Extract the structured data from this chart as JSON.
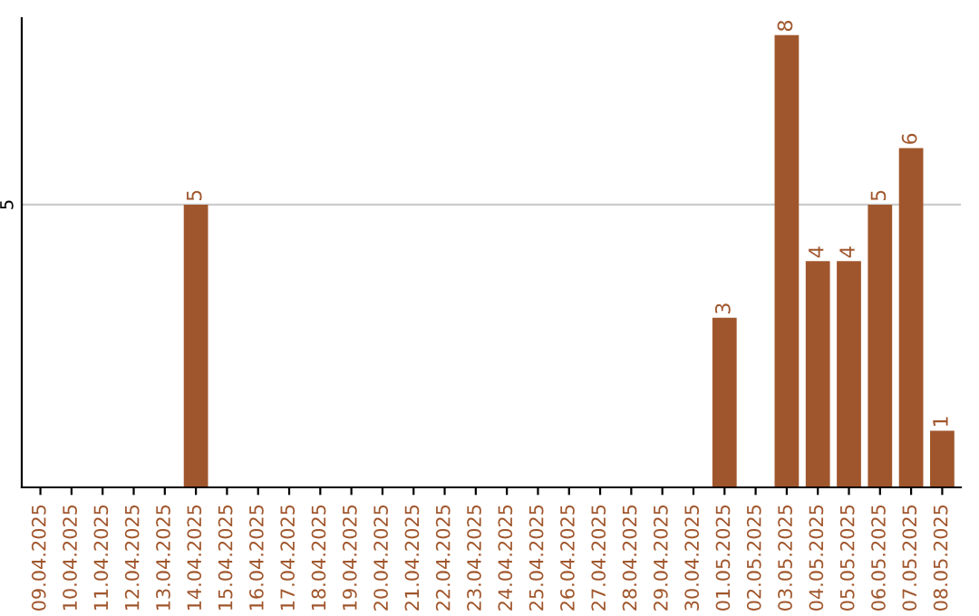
{
  "chart_data": {
    "type": "bar",
    "categories": [
      "09.04.2025",
      "10.04.2025",
      "11.04.2025",
      "12.04.2025",
      "13.04.2025",
      "14.04.2025",
      "15.04.2025",
      "16.04.2025",
      "17.04.2025",
      "18.04.2025",
      "19.04.2025",
      "20.04.2025",
      "21.04.2025",
      "22.04.2025",
      "23.04.2025",
      "24.04.2025",
      "25.04.2025",
      "26.04.2025",
      "27.04.2025",
      "28.04.2025",
      "29.04.2025",
      "30.04.2025",
      "01.05.2025",
      "02.05.2025",
      "03.05.2025",
      "04.05.2025",
      "05.05.2025",
      "06.05.2025",
      "07.05.2025",
      "08.05.2025"
    ],
    "values": [
      0,
      0,
      0,
      0,
      0,
      5,
      0,
      0,
      0,
      0,
      0,
      0,
      0,
      0,
      0,
      0,
      0,
      0,
      0,
      0,
      0,
      0,
      3,
      0,
      8,
      4,
      4,
      5,
      6,
      1
    ],
    "value_labels": [
      null,
      null,
      null,
      null,
      null,
      "5",
      null,
      null,
      null,
      null,
      null,
      null,
      null,
      null,
      null,
      null,
      null,
      null,
      null,
      null,
      null,
      null,
      "3",
      null,
      "8",
      "4",
      "4",
      "5",
      "6",
      "1"
    ],
    "color": "#a0562c",
    "ylim": [
      0,
      8.3
    ],
    "yticks": [
      5
    ],
    "grid": "y",
    "legend": false
  }
}
